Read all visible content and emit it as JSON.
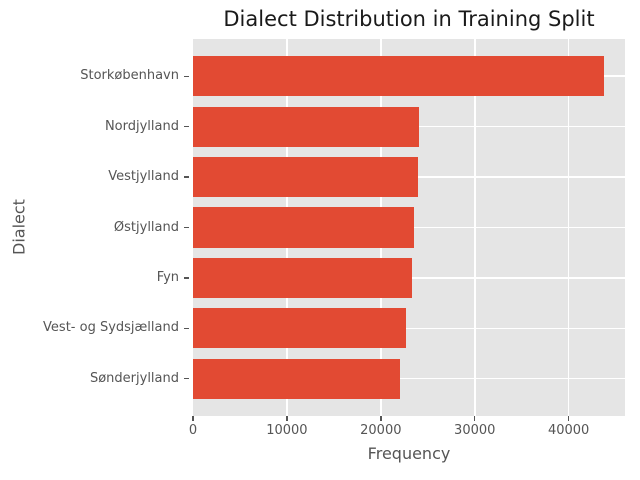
{
  "chart_data": {
    "type": "bar",
    "orientation": "horizontal",
    "title": "Dialect Distribution in Training Split",
    "xlabel": "Frequency",
    "ylabel": "Dialect",
    "categories": [
      "Storkøbenhavn",
      "Nordjylland",
      "Vestjylland",
      "Østjylland",
      "Fyn",
      "Vest- og Sydsjælland",
      "Sønderjylland"
    ],
    "values": [
      43750,
      24100,
      24000,
      23550,
      23300,
      22650,
      22000
    ],
    "xlim": [
      0,
      46000
    ],
    "xticks": [
      0,
      10000,
      20000,
      30000,
      40000
    ],
    "xtick_labels": [
      "0",
      "10000",
      "20000",
      "30000",
      "40000"
    ],
    "grid": true,
    "legend": false,
    "colors": {
      "bar": "#e24a33",
      "plot_background": "#e5e5e5",
      "gridline": "#ffffff",
      "tick_label": "#555555",
      "axis_label": "#555555",
      "title": "#1a1a1a",
      "figure_background": "#ffffff"
    }
  }
}
